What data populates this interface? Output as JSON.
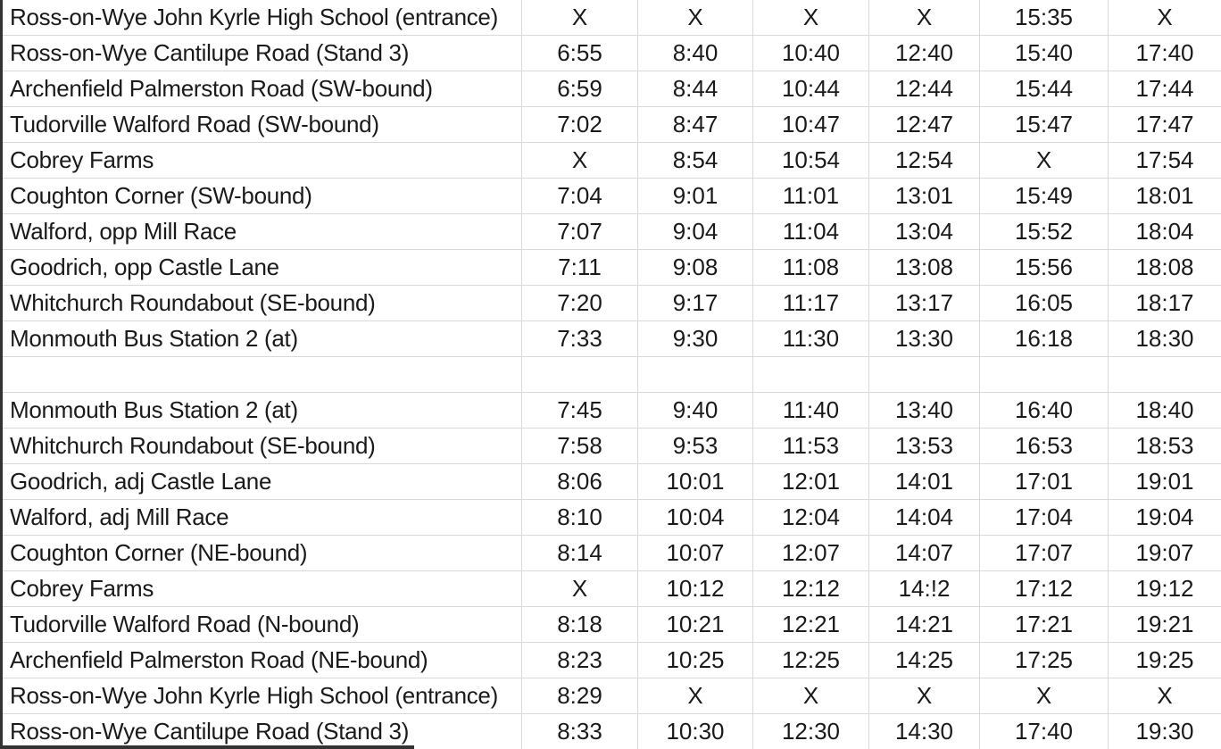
{
  "colors": {
    "grid_line": "#d9d9d9",
    "outer_border": "#333333",
    "text": "#1a1a1a",
    "background": "#ffffff"
  },
  "timetable": {
    "rows": [
      {
        "stop": "Ross-on-Wye John Kyrle High School (entrance)",
        "times": [
          "X",
          "X",
          "X",
          "X",
          "15:35",
          "X"
        ]
      },
      {
        "stop": "Ross-on-Wye Cantilupe Road (Stand 3)",
        "times": [
          "6:55",
          "8:40",
          "10:40",
          "12:40",
          "15:40",
          "17:40"
        ]
      },
      {
        "stop": "Archenfield Palmerston Road (SW-bound)",
        "times": [
          "6:59",
          "8:44",
          "10:44",
          "12:44",
          "15:44",
          "17:44"
        ]
      },
      {
        "stop": "Tudorville Walford Road (SW-bound)",
        "times": [
          "7:02",
          "8:47",
          "10:47",
          "12:47",
          "15:47",
          "17:47"
        ]
      },
      {
        "stop": "Cobrey Farms",
        "times": [
          "X",
          "8:54",
          "10:54",
          "12:54",
          "X",
          "17:54"
        ]
      },
      {
        "stop": "Coughton Corner (SW-bound)",
        "times": [
          "7:04",
          "9:01",
          "11:01",
          "13:01",
          "15:49",
          "18:01"
        ]
      },
      {
        "stop": "Walford, opp Mill Race",
        "times": [
          "7:07",
          "9:04",
          "11:04",
          "13:04",
          "15:52",
          "18:04"
        ]
      },
      {
        "stop": "Goodrich, opp Castle Lane",
        "times": [
          "7:11",
          "9:08",
          "11:08",
          "13:08",
          "15:56",
          "18:08"
        ]
      },
      {
        "stop": "Whitchurch Roundabout (SE-bound)",
        "times": [
          "7:20",
          "9:17",
          "11:17",
          "13:17",
          "16:05",
          "18:17"
        ]
      },
      {
        "stop": "Monmouth Bus Station 2 (at)",
        "times": [
          "7:33",
          "9:30",
          "11:30",
          "13:30",
          "16:18",
          "18:30"
        ]
      },
      {
        "stop": "",
        "times": [
          "",
          "",
          "",
          "",
          "",
          ""
        ]
      },
      {
        "stop": "Monmouth Bus Station 2 (at)",
        "times": [
          "7:45",
          "9:40",
          "11:40",
          "13:40",
          "16:40",
          "18:40"
        ]
      },
      {
        "stop": "Whitchurch Roundabout (SE-bound)",
        "times": [
          "7:58",
          "9:53",
          "11:53",
          "13:53",
          "16:53",
          "18:53"
        ]
      },
      {
        "stop": "Goodrich, adj Castle Lane",
        "times": [
          "8:06",
          "10:01",
          "12:01",
          "14:01",
          "17:01",
          "19:01"
        ]
      },
      {
        "stop": "Walford, adj Mill Race",
        "times": [
          "8:10",
          "10:04",
          "12:04",
          "14:04",
          "17:04",
          "19:04"
        ]
      },
      {
        "stop": "Coughton Corner (NE-bound)",
        "times": [
          "8:14",
          "10:07",
          "12:07",
          "14:07",
          "17:07",
          "19:07"
        ]
      },
      {
        "stop": "Cobrey Farms",
        "times": [
          "X",
          "10:12",
          "12:12",
          "14:!2",
          "17:12",
          "19:12"
        ]
      },
      {
        "stop": "Tudorville Walford Road (N-bound)",
        "times": [
          "8:18",
          "10:21",
          "12:21",
          "14:21",
          "17:21",
          "19:21"
        ]
      },
      {
        "stop": "Archenfield Palmerston Road (NE-bound)",
        "times": [
          "8:23",
          "10:25",
          "12:25",
          "14:25",
          "17:25",
          "19:25"
        ]
      },
      {
        "stop": "Ross-on-Wye John Kyrle High School (entrance)",
        "times": [
          "8:29",
          "X",
          "X",
          "X",
          "X",
          "X"
        ]
      },
      {
        "stop": "Ross-on-Wye Cantilupe Road (Stand 3)",
        "times": [
          "8:33",
          "10:30",
          "12:30",
          "14:30",
          "17:40",
          "19:30"
        ]
      }
    ]
  }
}
